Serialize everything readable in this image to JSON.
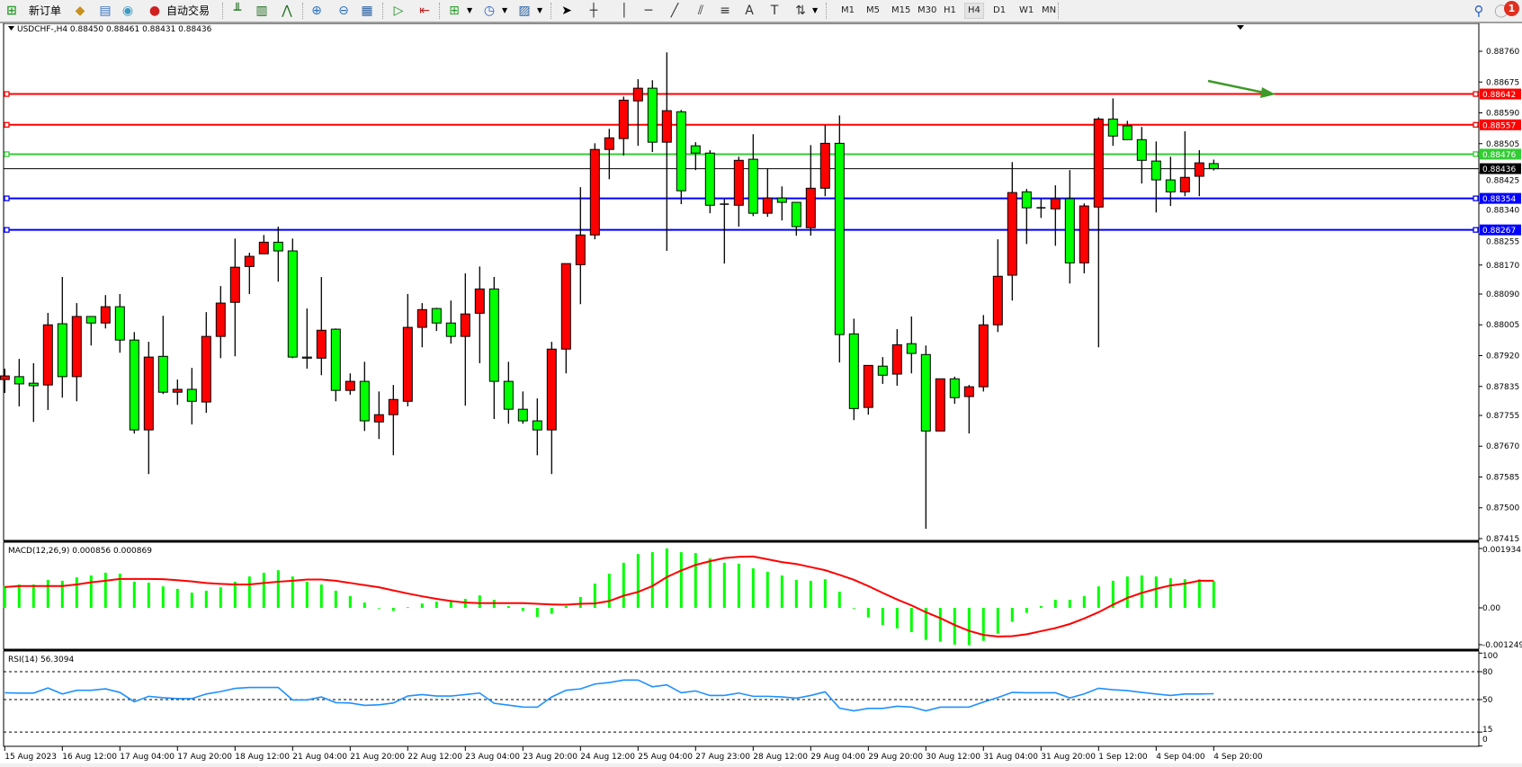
{
  "toolbar": {
    "new_order_label": "新订单",
    "auto_trade_label": "自动交易",
    "icons": [
      "new-order-icon",
      "market-watch-icon",
      "navigator-icon",
      "signals-icon",
      "auto-trading-icon",
      "bar-chart-icon",
      "candlestick-icon",
      "line-chart-icon",
      "zoom-in-icon",
      "zoom-out-icon",
      "tile-windows-icon",
      "chart-shift-icon",
      "autoscroll-icon",
      "indicators-icon",
      "periods-icon",
      "templates-icon",
      "cursor-icon",
      "crosshair-icon",
      "vertical-line-icon",
      "horizontal-line-icon",
      "trendline-icon",
      "equidistant-channel-icon",
      "fibonacci-icon",
      "text-icon",
      "text-label-icon",
      "arrows-icon",
      "search-icon",
      "notifications-icon"
    ],
    "timeframes": [
      "M1",
      "M5",
      "M15",
      "M30",
      "H1",
      "H4",
      "D1",
      "W1",
      "MN"
    ],
    "active_timeframe": "H4",
    "notification_count": "1"
  },
  "chart": {
    "header": "USDCHF-,H4  0.88450 0.88461 0.88431 0.88436",
    "symbol": "USDCHF-",
    "timeframe": "H4",
    "ohlc": {
      "open": "0.88450",
      "high": "0.88461",
      "low": "0.88431",
      "close": "0.88436"
    },
    "colors": {
      "bull": "#ff0000",
      "bear": "#00ff00",
      "outline": "#000000",
      "background": "#ffffff"
    },
    "price_ticks": [
      "0.88760",
      "0.88675",
      "0.88590",
      "0.88505",
      "0.88425",
      "0.88340",
      "0.88255",
      "0.88170",
      "0.88090",
      "0.88005",
      "0.87920",
      "0.87835",
      "0.87755",
      "0.87670",
      "0.87585",
      "0.87500",
      "0.87415"
    ],
    "price_range": [
      0.87415,
      0.8876
    ],
    "current_price": "0.88436",
    "horizontal_lines": [
      {
        "price": "0.88642",
        "color": "#ff0000"
      },
      {
        "price": "0.88557",
        "color": "#ff0000"
      },
      {
        "price": "0.88476",
        "color": "#32cd32"
      },
      {
        "price": "0.88354",
        "color": "#0000ff"
      },
      {
        "price": "0.88267",
        "color": "#0000ff"
      }
    ],
    "arrow_annotation": {
      "color": "#3c9a28",
      "direction": "right-down"
    },
    "time_labels": [
      "15 Aug 2023",
      "16 Aug 12:00",
      "17 Aug 04:00",
      "17 Aug 20:00",
      "18 Aug 12:00",
      "21 Aug 04:00",
      "21 Aug 20:00",
      "22 Aug 12:00",
      "23 Aug 04:00",
      "23 Aug 20:00",
      "24 Aug 12:00",
      "25 Aug 04:00",
      "27 Aug 23:00",
      "28 Aug 12:00",
      "29 Aug 04:00",
      "29 Aug 20:00",
      "30 Aug 12:00",
      "31 Aug 04:00",
      "31 Aug 20:00",
      "1 Sep 12:00",
      "4 Sep 04:00",
      "4 Sep 20:00"
    ],
    "candles": [
      [
        0.87854,
        0.87884,
        0.87817,
        0.87864
      ],
      [
        0.87862,
        0.87911,
        0.8778,
        0.87842
      ],
      [
        0.87844,
        0.87899,
        0.87737,
        0.87837
      ],
      [
        0.87839,
        0.88038,
        0.8777,
        0.88005
      ],
      [
        0.88008,
        0.88137,
        0.87804,
        0.87862
      ],
      [
        0.87862,
        0.88065,
        0.87794,
        0.88028
      ],
      [
        0.88028,
        0.88028,
        0.87948,
        0.8801
      ],
      [
        0.8801,
        0.88087,
        0.87995,
        0.88055
      ],
      [
        0.88055,
        0.8809,
        0.87928,
        0.87963
      ],
      [
        0.87963,
        0.87985,
        0.87705,
        0.87715
      ],
      [
        0.87715,
        0.87958,
        0.87593,
        0.87916
      ],
      [
        0.87918,
        0.8803,
        0.87814,
        0.87819
      ],
      [
        0.87819,
        0.87854,
        0.87784,
        0.87827
      ],
      [
        0.87827,
        0.87886,
        0.8773,
        0.87794
      ],
      [
        0.87792,
        0.8804,
        0.87762,
        0.87973
      ],
      [
        0.87973,
        0.88112,
        0.87913,
        0.88065
      ],
      [
        0.88067,
        0.88243,
        0.87918,
        0.88164
      ],
      [
        0.88166,
        0.88204,
        0.8809,
        0.88194
      ],
      [
        0.88201,
        0.88253,
        0.88201,
        0.88233
      ],
      [
        0.88233,
        0.88276,
        0.88124,
        0.88209
      ],
      [
        0.88209,
        0.88243,
        0.87913,
        0.87916
      ],
      [
        0.87916,
        0.8805,
        0.87884,
        0.87913
      ],
      [
        0.87913,
        0.88137,
        0.87866,
        0.8799
      ],
      [
        0.87993,
        0.87995,
        0.87794,
        0.87824
      ],
      [
        0.87824,
        0.87871,
        0.87812,
        0.87849
      ],
      [
        0.87849,
        0.87903,
        0.87712,
        0.8774
      ],
      [
        0.87737,
        0.87821,
        0.8769,
        0.87757
      ],
      [
        0.87757,
        0.87839,
        0.87645,
        0.87799
      ],
      [
        0.87794,
        0.8809,
        0.8778,
        0.87998
      ],
      [
        0.87998,
        0.88065,
        0.87943,
        0.88047
      ],
      [
        0.8805,
        0.88052,
        0.87988,
        0.8801
      ],
      [
        0.8801,
        0.88072,
        0.87953,
        0.87973
      ],
      [
        0.87973,
        0.88147,
        0.87782,
        0.88035
      ],
      [
        0.88037,
        0.88166,
        0.87899,
        0.88104
      ],
      [
        0.88104,
        0.88137,
        0.87745,
        0.87849
      ],
      [
        0.87849,
        0.87903,
        0.87732,
        0.87772
      ],
      [
        0.87772,
        0.87821,
        0.87732,
        0.8774
      ],
      [
        0.8774,
        0.87802,
        0.87645,
        0.87715
      ],
      [
        0.87715,
        0.87958,
        0.87593,
        0.87938
      ],
      [
        0.87938,
        0.88174,
        0.87871,
        0.88174
      ],
      [
        0.88171,
        0.88385,
        0.88062,
        0.88253
      ],
      [
        0.88253,
        0.88506,
        0.88241,
        0.88489
      ],
      [
        0.88489,
        0.88546,
        0.88407,
        0.88521
      ],
      [
        0.88519,
        0.88635,
        0.88472,
        0.88625
      ],
      [
        0.88623,
        0.88683,
        0.88499,
        0.88658
      ],
      [
        0.88658,
        0.8868,
        0.88482,
        0.88509
      ],
      [
        0.88509,
        0.88757,
        0.88209,
        0.88596
      ],
      [
        0.88593,
        0.88598,
        0.88338,
        0.88375
      ],
      [
        0.88499,
        0.88509,
        0.88432,
        0.88479
      ],
      [
        0.88479,
        0.88487,
        0.88313,
        0.88335
      ],
      [
        0.88338,
        0.88353,
        0.88174,
        0.88338
      ],
      [
        0.88335,
        0.88469,
        0.88276,
        0.88459
      ],
      [
        0.88462,
        0.88531,
        0.88305,
        0.88313
      ],
      [
        0.88313,
        0.88437,
        0.88303,
        0.88355
      ],
      [
        0.88355,
        0.88387,
        0.88293,
        0.88343
      ],
      [
        0.88343,
        0.88343,
        0.88251,
        0.88276
      ],
      [
        0.88273,
        0.88501,
        0.88251,
        0.88382
      ],
      [
        0.88382,
        0.88556,
        0.8836,
        0.88506
      ],
      [
        0.88506,
        0.88583,
        0.87901,
        0.87978
      ],
      [
        0.8798,
        0.88022,
        0.87742,
        0.87774
      ],
      [
        0.87777,
        0.87893,
        0.87757,
        0.87893
      ],
      [
        0.87891,
        0.87916,
        0.87842,
        0.87866
      ],
      [
        0.87869,
        0.87993,
        0.87837,
        0.8795
      ],
      [
        0.87953,
        0.88028,
        0.87871,
        0.87926
      ],
      [
        0.87923,
        0.87948,
        0.87442,
        0.87712
      ],
      [
        0.87712,
        0.87856,
        0.87712,
        0.87856
      ],
      [
        0.87856,
        0.87862,
        0.87787,
        0.87804
      ],
      [
        0.87807,
        0.87839,
        0.87705,
        0.87834
      ],
      [
        0.87834,
        0.88032,
        0.87821,
        0.88005
      ],
      [
        0.88005,
        0.88241,
        0.87985,
        0.88139
      ],
      [
        0.88142,
        0.88454,
        0.88072,
        0.8837
      ],
      [
        0.88372,
        0.8838,
        0.88228,
        0.88328
      ],
      [
        0.88328,
        0.88353,
        0.883,
        0.88328
      ],
      [
        0.88325,
        0.8839,
        0.88223,
        0.88353
      ],
      [
        0.88353,
        0.88432,
        0.88119,
        0.88176
      ],
      [
        0.88176,
        0.8834,
        0.88147,
        0.88333
      ],
      [
        0.8833,
        0.88578,
        0.87943,
        0.88573
      ],
      [
        0.88573,
        0.8863,
        0.88499,
        0.88526
      ],
      [
        0.88554,
        0.88568,
        0.88516,
        0.88516
      ],
      [
        0.88516,
        0.88551,
        0.88395,
        0.88459
      ],
      [
        0.88457,
        0.88511,
        0.88315,
        0.88405
      ],
      [
        0.88405,
        0.88469,
        0.88333,
        0.88372
      ],
      [
        0.88372,
        0.88539,
        0.8836,
        0.88412
      ],
      [
        0.88415,
        0.88487,
        0.8836,
        0.88452
      ],
      [
        0.8845,
        0.88461,
        0.88431,
        0.88436
      ]
    ]
  },
  "macd": {
    "label": "MACD(12,26,9) 0.000856 0.000869",
    "ticks": [
      "0.001934",
      "0.00",
      "-0.001249"
    ],
    "range": [
      -0.001249,
      0.001934
    ],
    "histogram_color": "#00ff00",
    "signal_color": "#ff0000",
    "histogram": [
      0.0007,
      0.00075,
      0.00075,
      0.0009,
      0.00087,
      0.00098,
      0.00104,
      0.00113,
      0.0011,
      0.00084,
      0.00081,
      0.00069,
      0.00061,
      0.00049,
      0.00055,
      0.00066,
      0.00084,
      0.00101,
      0.00113,
      0.00121,
      0.00101,
      0.00084,
      0.00075,
      0.00055,
      0.00038,
      0.00017,
      -2e-05,
      -0.0001,
      2e-05,
      0.00014,
      0.0002,
      0.00023,
      0.00029,
      0.0004,
      0.00026,
      6e-05,
      -0.0001,
      -0.00029,
      -0.00019,
      6e-05,
      0.00035,
      0.00078,
      0.0011,
      0.00145,
      0.00173,
      0.00179,
      0.00191,
      0.00179,
      0.00176,
      0.00159,
      0.00145,
      0.00142,
      0.00127,
      0.00116,
      0.00104,
      0.0009,
      0.00087,
      0.00092,
      0.00052,
      -2e-05,
      -0.00031,
      -0.00055,
      -0.00066,
      -0.00078,
      -0.00103,
      -0.00109,
      -0.00118,
      -0.0012,
      -0.00106,
      -0.00083,
      -0.00045,
      -0.00016,
      6e-05,
      0.00026,
      0.00026,
      0.00038,
      0.00069,
      0.00087,
      0.00101,
      0.00104,
      0.00101,
      0.00095,
      0.00092,
      0.00092,
      0.000856
    ],
    "signal": [
      0.00067,
      0.0007,
      0.0007,
      0.0007,
      0.0007,
      0.00075,
      0.00082,
      0.00087,
      0.00093,
      0.00093,
      0.00093,
      0.00092,
      0.00089,
      0.00085,
      0.0008,
      0.00077,
      0.00075,
      0.00075,
      0.0008,
      0.00084,
      0.00087,
      0.00091,
      0.00091,
      0.00087,
      0.0008,
      0.00073,
      0.00066,
      0.00056,
      0.00046,
      0.00037,
      0.00029,
      0.00022,
      0.00017,
      0.00015,
      0.00015,
      0.00015,
      0.00015,
      0.00013,
      0.00011,
      0.0001,
      0.00013,
      0.00014,
      0.00022,
      0.00039,
      0.00051,
      0.0007,
      0.00099,
      0.0012,
      0.00138,
      0.0015,
      0.0016,
      0.00164,
      0.00165,
      0.00156,
      0.00147,
      0.00141,
      0.00131,
      0.00121,
      0.00106,
      0.0009,
      0.0007,
      0.00048,
      0.00027,
      8e-05,
      -0.00014,
      -0.00033,
      -0.00055,
      -0.00074,
      -0.00087,
      -0.00092,
      -0.00091,
      -0.00085,
      -0.00075,
      -0.00065,
      -0.00052,
      -0.00034,
      -0.00014,
      0.0001,
      0.00032,
      0.00048,
      0.00061,
      0.00072,
      0.00078,
      0.00087,
      0.000869
    ]
  },
  "rsi": {
    "label": "RSI(14) 56.3094",
    "ticks": [
      "100",
      "80",
      "50",
      "15",
      "0"
    ],
    "levels": [
      80,
      50,
      15
    ],
    "line_color": "#1e90ff",
    "values": [
      57.3,
      57,
      57,
      62.5,
      56,
      60,
      60,
      61.5,
      57.7,
      47.6,
      53.5,
      52,
      51,
      51,
      56,
      58.6,
      62,
      63,
      63,
      63,
      49.6,
      49.6,
      52.8,
      46.7,
      46.3,
      43.8,
      44.4,
      46.3,
      53.8,
      55.4,
      53.8,
      53.8,
      55.4,
      57,
      46,
      44,
      42,
      41.8,
      52.8,
      60,
      61.5,
      66.7,
      68.3,
      71,
      71,
      63.8,
      65.8,
      57.3,
      59.3,
      54.4,
      54.4,
      57,
      53.5,
      53.5,
      52.8,
      51.5,
      54.4,
      58.3,
      40.8,
      37.9,
      40.5,
      40.5,
      42.8,
      42,
      37.9,
      41.8,
      41.8,
      42,
      47.3,
      52.2,
      57.7,
      57.3,
      57.3,
      57.3,
      51.8,
      56,
      62.2,
      60.6,
      59.6,
      57.7,
      56,
      54.4,
      56,
      56,
      56.3
    ]
  }
}
